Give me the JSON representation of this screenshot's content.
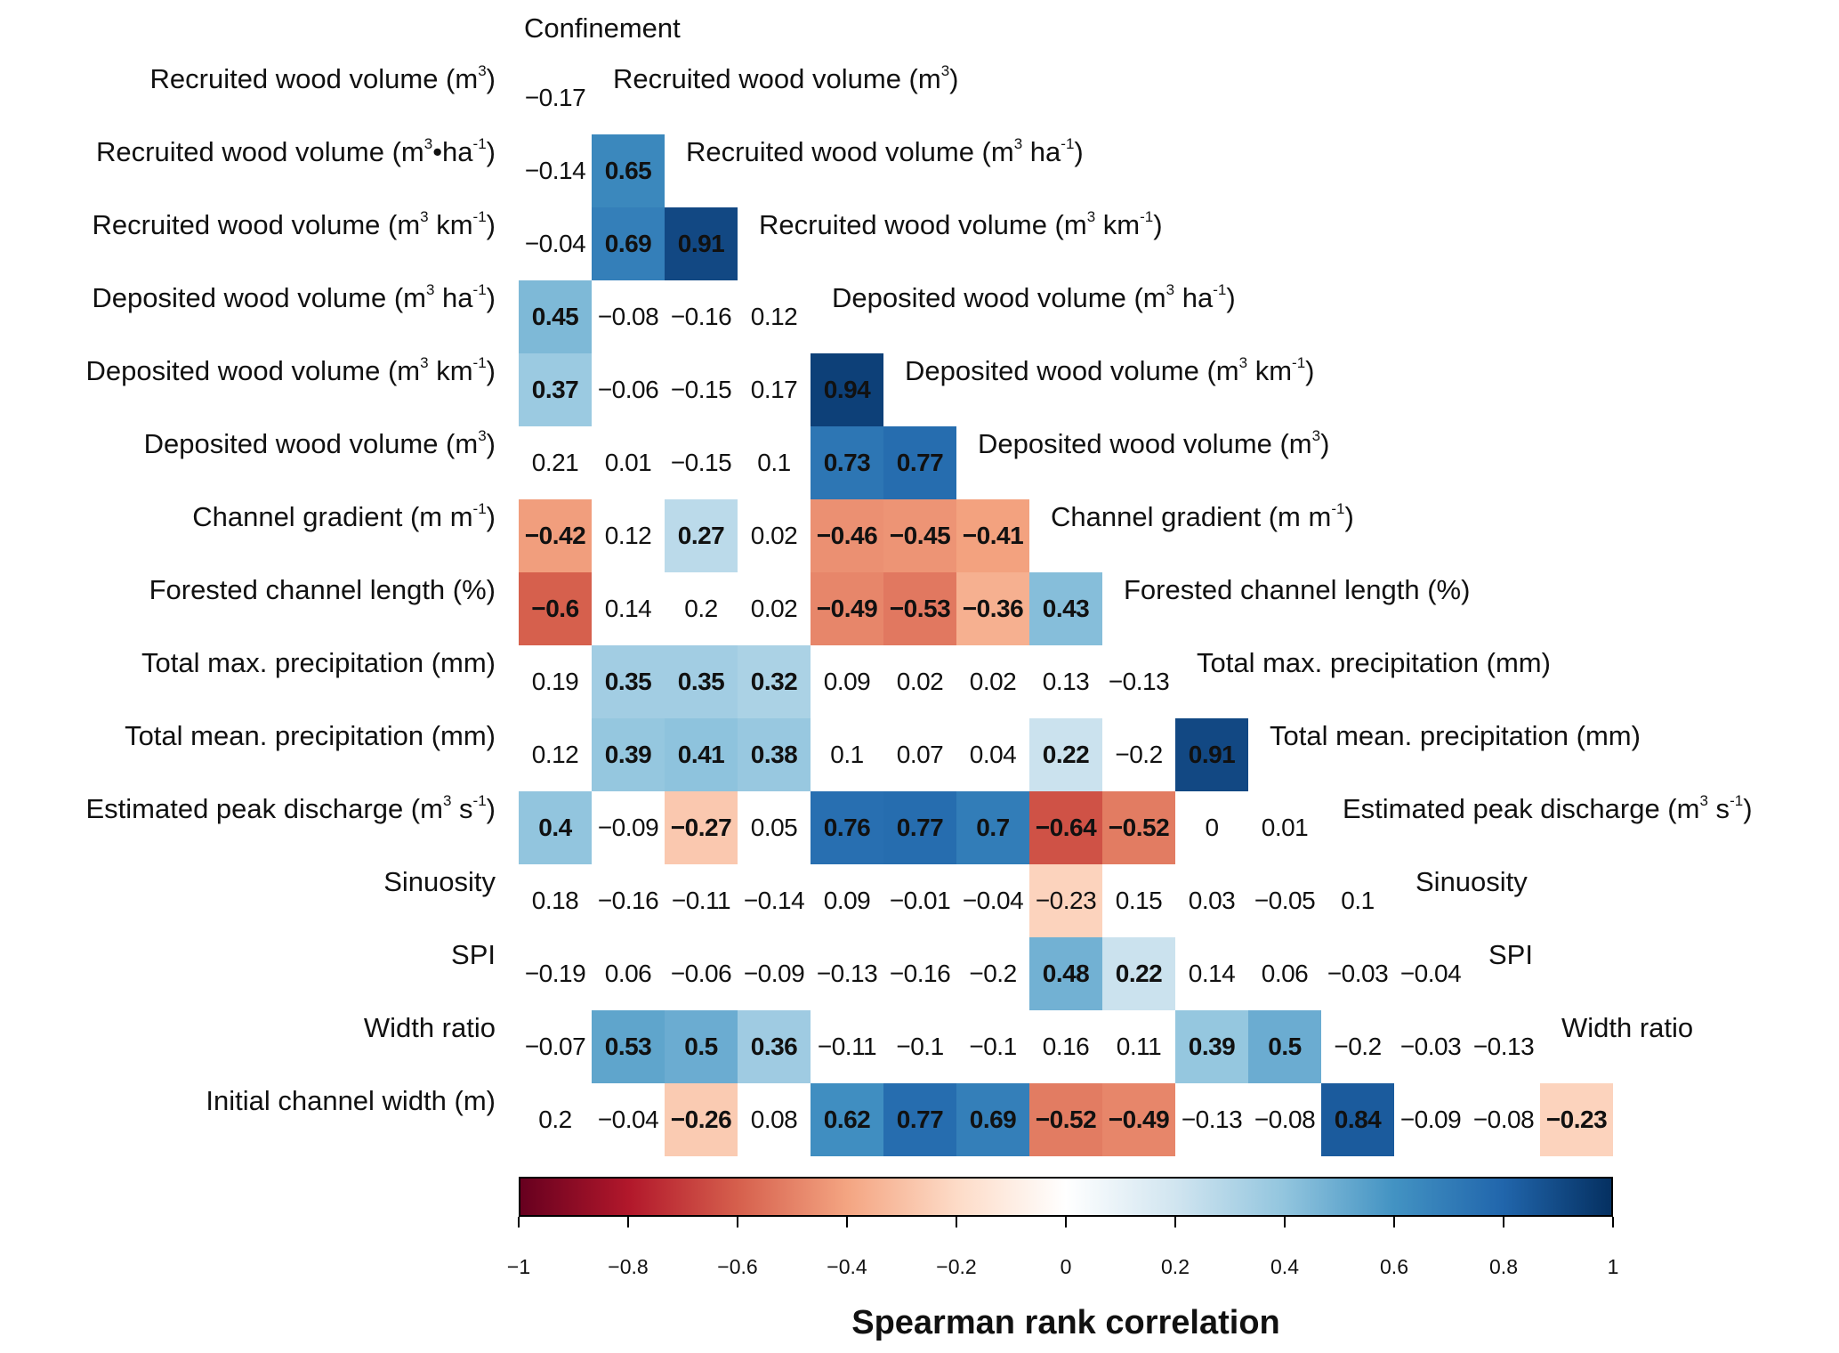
{
  "chart_data": {
    "type": "heatmap",
    "subtype": "lower-triangular correlation matrix",
    "colormap": "RdBu",
    "column_labels": [
      [
        "Confinement"
      ],
      [
        "Recruited wood volume (m",
        {
          "sup": "3"
        },
        ")"
      ],
      [
        "Recruited wood volume (m",
        {
          "sup": "3"
        },
        " ha",
        {
          "sup": "-1"
        },
        ")"
      ],
      [
        "Recruited wood volume (m",
        {
          "sup": "3"
        },
        " km",
        {
          "sup": "-1"
        },
        ")"
      ],
      [
        "Deposited wood volume (m",
        {
          "sup": "3"
        },
        " ha",
        {
          "sup": "-1"
        },
        ")"
      ],
      [
        "Deposited wood volume (m",
        {
          "sup": "3"
        },
        " km",
        {
          "sup": "-1"
        },
        ")"
      ],
      [
        "Deposited wood volume (m",
        {
          "sup": "3"
        },
        ")"
      ],
      [
        "Channel gradient (m m",
        {
          "sup": "-1"
        },
        ")"
      ],
      [
        "Forested channel length (%)"
      ],
      [
        "Total max. precipitation (mm)"
      ],
      [
        "Total mean. precipitation (mm)"
      ],
      [
        "Estimated peak discharge (m",
        {
          "sup": "3"
        },
        " s",
        {
          "sup": "-1"
        },
        ")"
      ],
      [
        "Sinuosity"
      ],
      [
        "SPI"
      ],
      [
        "Width ratio"
      ]
    ],
    "row_labels": [
      [
        "Recruited wood volume (m",
        {
          "sup": "3"
        },
        ")"
      ],
      [
        "Recruited wood volume (m",
        {
          "sup": "3"
        },
        "•ha",
        {
          "sup": "-1"
        },
        ")"
      ],
      [
        "Recruited wood volume (m",
        {
          "sup": "3"
        },
        " km",
        {
          "sup": "-1"
        },
        ")"
      ],
      [
        "Deposited wood volume (m",
        {
          "sup": "3"
        },
        " ha",
        {
          "sup": "-1"
        },
        ")"
      ],
      [
        "Deposited wood volume (m",
        {
          "sup": "3"
        },
        " km",
        {
          "sup": "-1"
        },
        ")"
      ],
      [
        "Deposited wood volume (m",
        {
          "sup": "3"
        },
        ")"
      ],
      [
        "Channel gradient (m m",
        {
          "sup": "-1"
        },
        ")"
      ],
      [
        "Forested channel length (%)"
      ],
      [
        "Total max. precipitation (mm)"
      ],
      [
        "Total mean. precipitation (mm)"
      ],
      [
        "Estimated peak discharge (m",
        {
          "sup": "3"
        },
        " s",
        {
          "sup": "-1"
        },
        ")"
      ],
      [
        "Sinuosity"
      ],
      [
        "SPI"
      ],
      [
        "Width ratio"
      ],
      [
        "Initial channel width (m)"
      ]
    ],
    "values": [
      [
        -0.17
      ],
      [
        -0.14,
        0.65
      ],
      [
        -0.04,
        0.69,
        0.91
      ],
      [
        0.45,
        -0.08,
        -0.16,
        0.12
      ],
      [
        0.37,
        -0.06,
        -0.15,
        0.17,
        0.94
      ],
      [
        0.21,
        0.01,
        -0.15,
        0.1,
        0.73,
        0.77
      ],
      [
        -0.42,
        0.12,
        0.27,
        0.02,
        -0.46,
        -0.45,
        -0.41
      ],
      [
        -0.6,
        0.14,
        0.2,
        0.02,
        -0.49,
        -0.53,
        -0.36,
        0.43
      ],
      [
        0.19,
        0.35,
        0.35,
        0.32,
        0.09,
        0.02,
        0.02,
        0.13,
        -0.13
      ],
      [
        0.12,
        0.39,
        0.41,
        0.38,
        0.1,
        0.07,
        0.04,
        0.22,
        -0.2,
        0.91
      ],
      [
        0.4,
        -0.09,
        -0.27,
        0.05,
        0.76,
        0.77,
        0.7,
        -0.64,
        -0.52,
        0,
        0.01
      ],
      [
        0.18,
        -0.16,
        -0.11,
        -0.14,
        0.09,
        -0.01,
        -0.04,
        -0.23,
        0.15,
        0.03,
        -0.05,
        0.1
      ],
      [
        -0.19,
        0.06,
        -0.06,
        -0.09,
        -0.13,
        -0.16,
        -0.2,
        0.48,
        0.22,
        0.14,
        0.06,
        -0.03,
        -0.04
      ],
      [
        -0.07,
        0.53,
        0.5,
        0.36,
        -0.11,
        -0.1,
        -0.1,
        0.16,
        0.11,
        0.39,
        0.5,
        -0.2,
        -0.03,
        -0.13
      ],
      [
        0.2,
        -0.04,
        -0.26,
        0.08,
        0.62,
        0.77,
        0.69,
        -0.52,
        -0.49,
        -0.13,
        -0.08,
        0.84,
        -0.09,
        -0.08,
        -0.23
      ]
    ],
    "bold_significant": [
      [
        0
      ],
      [
        0,
        1
      ],
      [
        0,
        1,
        1
      ],
      [
        1,
        0,
        0,
        0
      ],
      [
        1,
        0,
        0,
        0,
        1
      ],
      [
        0,
        0,
        0,
        0,
        1,
        1
      ],
      [
        1,
        0,
        1,
        0,
        1,
        1,
        1
      ],
      [
        1,
        0,
        0,
        0,
        1,
        1,
        1,
        1
      ],
      [
        0,
        1,
        1,
        1,
        0,
        0,
        0,
        0,
        0
      ],
      [
        0,
        1,
        1,
        1,
        0,
        0,
        0,
        1,
        0,
        1
      ],
      [
        1,
        0,
        1,
        0,
        1,
        1,
        1,
        1,
        1,
        0,
        0
      ],
      [
        0,
        0,
        0,
        0,
        0,
        0,
        0,
        0,
        0,
        0,
        0,
        0
      ],
      [
        0,
        0,
        0,
        0,
        0,
        0,
        0,
        1,
        1,
        0,
        0,
        0,
        0
      ],
      [
        0,
        1,
        1,
        1,
        0,
        0,
        0,
        0,
        0,
        1,
        1,
        0,
        0,
        0
      ],
      [
        0,
        0,
        1,
        0,
        1,
        1,
        1,
        1,
        1,
        0,
        0,
        1,
        0,
        0,
        1
      ]
    ],
    "shaded": [
      [
        0
      ],
      [
        0,
        1
      ],
      [
        0,
        1,
        1
      ],
      [
        1,
        0,
        0,
        0
      ],
      [
        1,
        0,
        0,
        0,
        1
      ],
      [
        0,
        0,
        0,
        0,
        1,
        1
      ],
      [
        1,
        0,
        1,
        0,
        1,
        1,
        1
      ],
      [
        1,
        0,
        0,
        0,
        1,
        1,
        1,
        1
      ],
      [
        0,
        1,
        1,
        1,
        0,
        0,
        0,
        0,
        0
      ],
      [
        0,
        1,
        1,
        1,
        0,
        0,
        0,
        1,
        0,
        1
      ],
      [
        1,
        0,
        1,
        0,
        1,
        1,
        1,
        1,
        1,
        0,
        0
      ],
      [
        0,
        0,
        0,
        0,
        0,
        0,
        0,
        1,
        0,
        0,
        0,
        0
      ],
      [
        0,
        0,
        0,
        0,
        0,
        0,
        0,
        1,
        1,
        0,
        0,
        0,
        0
      ],
      [
        0,
        1,
        1,
        1,
        0,
        0,
        0,
        0,
        0,
        1,
        1,
        0,
        0,
        0
      ],
      [
        0,
        0,
        1,
        0,
        1,
        1,
        1,
        1,
        1,
        0,
        0,
        1,
        0,
        0,
        1
      ]
    ],
    "colorbar": {
      "title": "Spearman rank correlation",
      "range": [
        -1,
        1
      ],
      "ticks": [
        "−1",
        "−0.8",
        "−0.6",
        "−0.4",
        "−0.2",
        "0",
        "0.2",
        "0.4",
        "0.6",
        "0.8",
        "1"
      ],
      "stops": [
        "#67001f",
        "#b2182b",
        "#d6604d",
        "#f4a582",
        "#fddbc7",
        "#ffffff",
        "#d1e5f0",
        "#92c5de",
        "#4393c3",
        "#2166ac",
        "#053061"
      ],
      "placement": "bottom"
    }
  }
}
